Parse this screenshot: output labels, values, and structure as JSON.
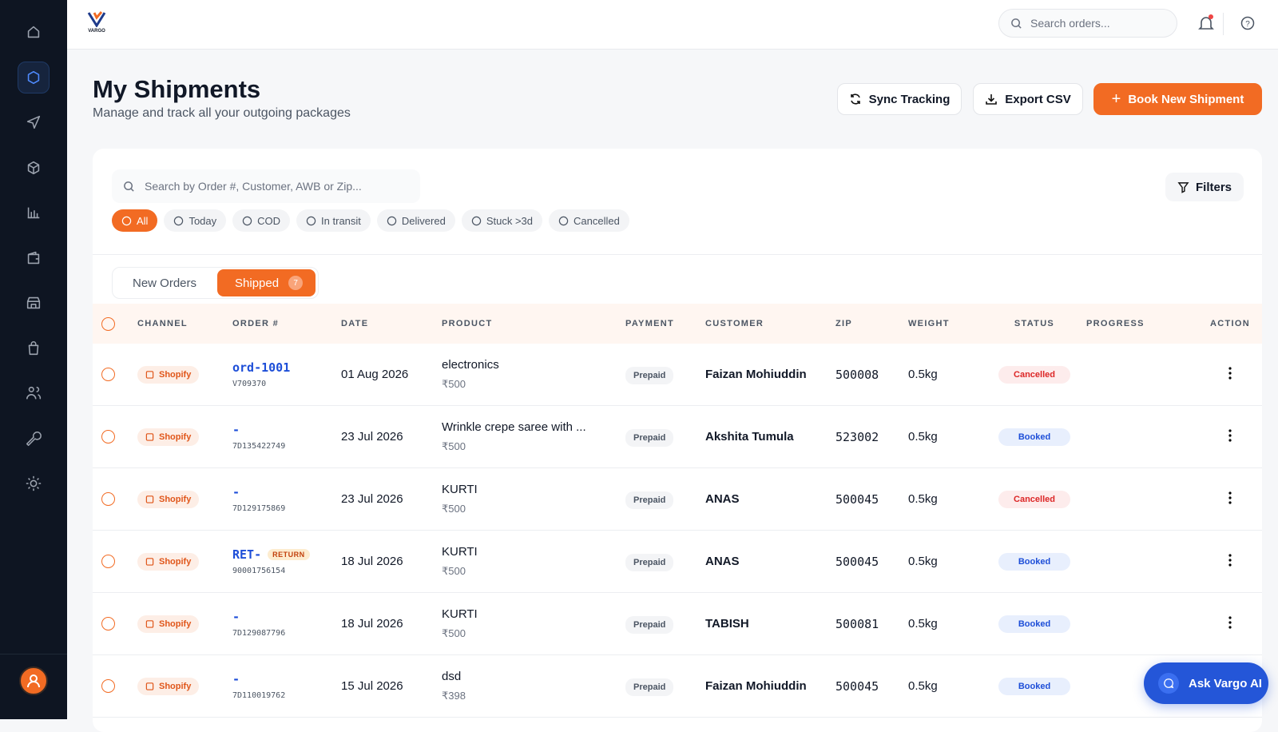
{
  "logo": "VARGO",
  "search_placeholder": "Search orders...",
  "header": {
    "title": "My Shipments",
    "subtitle": "Manage and track all your outgoing packages"
  },
  "actions": [
    "Sync Tracking",
    "Export CSV",
    "Book New Shipment"
  ],
  "table_search_placeholder": "Search by Order #, Customer, AWB or Zip...",
  "filters_button": "Filters",
  "chips": [
    "All",
    "Today",
    "COD",
    "In transit",
    "Delivered",
    "Stuck >3d",
    "Cancelled"
  ],
  "tabs": [
    {
      "label": "New Orders"
    },
    {
      "label": "Shipped",
      "count": 7
    }
  ],
  "columns": [
    "CHANNEL",
    "ORDER #",
    "DATE",
    "PRODUCT",
    "PAYMENT",
    "CUSTOMER",
    "ZIP",
    "WEIGHT",
    "STATUS",
    "PROGRESS",
    "ACTION"
  ],
  "rows": [
    {
      "channel": "Shopify",
      "order": "ord-1001",
      "awb": "V709370",
      "date": "01 Aug 2026",
      "product": "electronics",
      "price": "₹500",
      "payment": "Prepaid",
      "customer": "Faizan Mohiuddin",
      "zip": "500008",
      "weight": "0.5kg",
      "status": "Cancelled"
    },
    {
      "channel": "Shopify",
      "order": "-",
      "awb": "7D135422749",
      "date": "23 Jul 2026",
      "product": "Wrinkle crepe saree with ...",
      "price": "₹500",
      "payment": "Prepaid",
      "customer": "Akshita Tumula",
      "zip": "523002",
      "weight": "0.5kg",
      "status": "Booked"
    },
    {
      "channel": "Shopify",
      "order": "-",
      "awb": "7D129175869",
      "date": "23 Jul 2026",
      "product": "KURTI",
      "price": "₹500",
      "payment": "Prepaid",
      "customer": "ANAS",
      "zip": "500045",
      "weight": "0.5kg",
      "status": "Cancelled"
    },
    {
      "channel": "Shopify",
      "order": "RET-",
      "tag": "RETURN",
      "awb": "90001756154",
      "date": "18 Jul 2026",
      "product": "KURTI",
      "price": "₹500",
      "payment": "Prepaid",
      "customer": "ANAS",
      "zip": "500045",
      "weight": "0.5kg",
      "status": "Booked"
    },
    {
      "channel": "Shopify",
      "order": "-",
      "awb": "7D129087796",
      "date": "18 Jul 2026",
      "product": "KURTI",
      "price": "₹500",
      "payment": "Prepaid",
      "customer": "TABISH",
      "zip": "500081",
      "weight": "0.5kg",
      "status": "Booked"
    },
    {
      "channel": "Shopify",
      "order": "-",
      "awb": "7D110019762",
      "date": "15 Jul 2026",
      "product": "dsd",
      "price": "₹398",
      "payment": "Prepaid",
      "customer": "Faizan Mohiuddin",
      "zip": "500045",
      "weight": "0.5kg",
      "status": "Booked"
    }
  ],
  "assistant": "Ask Vargo AI"
}
